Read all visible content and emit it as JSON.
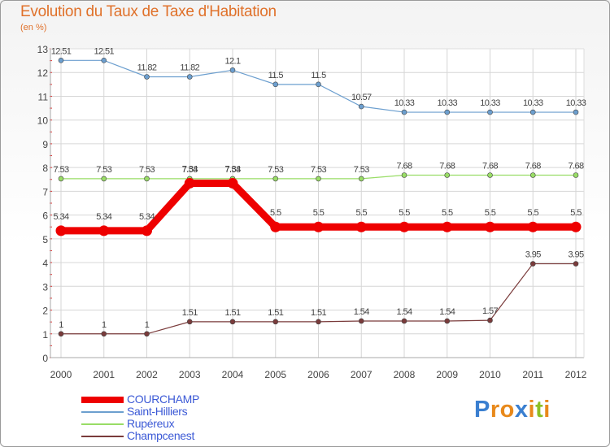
{
  "title": "Evolution du Taux de Taxe d'Habitation",
  "subtitle": "(en %)",
  "logo": {
    "letters": [
      "P",
      "r",
      "o",
      "x",
      "i",
      "t",
      "i"
    ],
    "colors": [
      "#3a7fd0",
      "#e8891b",
      "#e8891b",
      "#3a7fd0",
      "#e8891b",
      "#8cbf26",
      "#e8891b"
    ]
  },
  "chart_data": {
    "type": "line",
    "x": [
      "2000",
      "2001",
      "2002",
      "2003",
      "2004",
      "2005",
      "2006",
      "2007",
      "2008",
      "2009",
      "2010",
      "2011",
      "2012"
    ],
    "ylim": [
      0,
      13
    ],
    "yticks": [
      "0",
      "1",
      "2",
      "3",
      "4",
      "5",
      "6",
      "7",
      "8",
      "9",
      "10",
      "11",
      "12",
      "13"
    ],
    "grid": true,
    "legend_position": "bottom-left",
    "series": [
      {
        "name": "COURCHAMP",
        "color": "#ee0000",
        "values": [
          5.34,
          5.34,
          5.34,
          7.34,
          7.34,
          5.5,
          5.5,
          5.5,
          5.5,
          5.5,
          5.5,
          5.5,
          5.5
        ],
        "labels": [
          "5.34",
          "5.34",
          "5.34",
          "7.34",
          "7.34",
          "5.5",
          "5.5",
          "5.5",
          "5.5",
          "5.5",
          "5.5",
          "5.5",
          "5.5"
        ]
      },
      {
        "name": "Saint-Hilliers",
        "color": "#6c9fcf",
        "values": [
          12.51,
          12.51,
          11.82,
          11.82,
          12.1,
          11.5,
          11.5,
          10.57,
          10.33,
          10.33,
          10.33,
          10.33,
          10.33
        ],
        "labels": [
          "12.51",
          "12.51",
          "11.82",
          "11.82",
          "12.1",
          "11.5",
          "11.5",
          "10.57",
          "10.33",
          "10.33",
          "10.33",
          "10.33",
          "10.33"
        ]
      },
      {
        "name": "Rupéreux",
        "color": "#99dd66",
        "values": [
          7.53,
          7.53,
          7.53,
          7.53,
          7.53,
          7.53,
          7.53,
          7.53,
          7.68,
          7.68,
          7.68,
          7.68,
          7.68
        ],
        "labels": [
          "7.53",
          "7.53",
          "7.53",
          "7.53",
          "7.53",
          "7.53",
          "7.53",
          "7.53",
          "7.68",
          "7.68",
          "7.68",
          "7.68",
          "7.68"
        ]
      },
      {
        "name": "Champcenest",
        "color": "#7a3b3b",
        "values": [
          1,
          1,
          1,
          1.51,
          1.51,
          1.51,
          1.51,
          1.54,
          1.54,
          1.54,
          1.57,
          3.95,
          3.95
        ],
        "labels": [
          "1",
          "1",
          "1",
          "1.51",
          "1.51",
          "1.51",
          "1.51",
          "1.54",
          "1.54",
          "1.54",
          "1.57",
          "3.95",
          "3.95"
        ]
      }
    ]
  }
}
